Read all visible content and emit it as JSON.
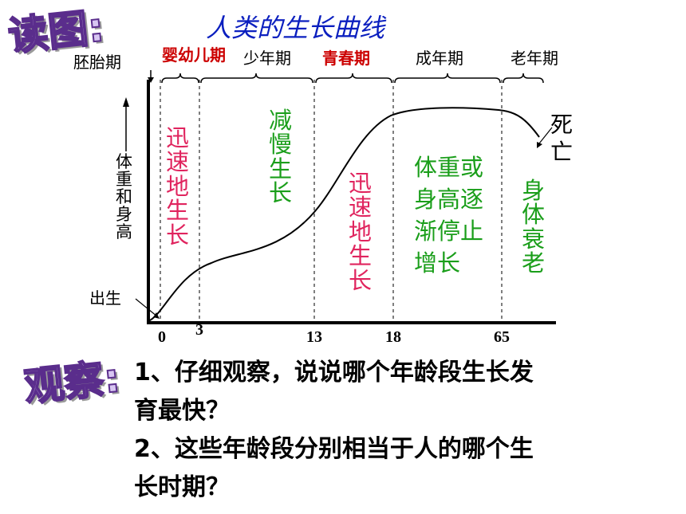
{
  "header": {
    "read_label": "读图:",
    "title": "人类的生长曲线"
  },
  "stages": {
    "embryo": "胚胎期",
    "infant": "婴幼儿期",
    "juvenile": "少年期",
    "adolescence": "青春期",
    "adult": "成年期",
    "elderly": "老年期"
  },
  "y_axis": {
    "label": "体重和身高"
  },
  "x_axis": {
    "ticks": [
      "0",
      "3",
      "13",
      "18",
      "65"
    ]
  },
  "annotations": {
    "birth": "出生",
    "death": "死亡",
    "rapid_1": "迅速地生长",
    "slow": "减慢生长",
    "rapid_2": "迅速地生长",
    "plateau": [
      "体重或",
      "身高逐",
      "渐停止",
      "增长"
    ],
    "aging": "身体衰老"
  },
  "observe": {
    "label": "观察:",
    "q1_line1": "1、仔细观察，说说哪个年龄段生长发",
    "q1_line2": "育最快？",
    "q2_line1": "2、这些年龄段分别相当于人的哪个生",
    "q2_line2": "长时期？"
  },
  "colors": {
    "rapid": "#e0245e",
    "green": "#1a9e1a",
    "title_blue": "#0b1fbf",
    "stage_red": "#cc0000"
  }
}
